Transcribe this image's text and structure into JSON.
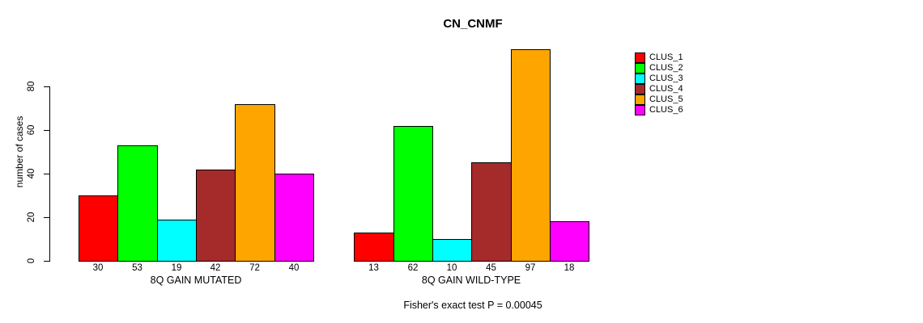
{
  "title": "CN_CNMF",
  "chart_data": {
    "type": "bar",
    "title": "CN_CNMF",
    "ylabel": "number of cases",
    "xlabel": "",
    "ylim": [
      0,
      100
    ],
    "yticks": [
      0,
      20,
      40,
      60,
      80
    ],
    "grid": false,
    "legend_position": "right",
    "categories": [
      "8Q GAIN MUTATED",
      "8Q GAIN WILD-TYPE"
    ],
    "series": [
      {
        "name": "CLUS_1",
        "color": "#FF0000",
        "values": [
          30,
          13
        ]
      },
      {
        "name": "CLUS_2",
        "color": "#00FF00",
        "values": [
          53,
          62
        ]
      },
      {
        "name": "CLUS_3",
        "color": "#00FFFF",
        "values": [
          19,
          10
        ]
      },
      {
        "name": "CLUS_4",
        "color": "#A52A2A",
        "values": [
          42,
          45
        ]
      },
      {
        "name": "CLUS_5",
        "color": "#FFA500",
        "values": [
          72,
          97
        ]
      },
      {
        "name": "CLUS_6",
        "color": "#FF00FF",
        "values": [
          40,
          18
        ]
      }
    ],
    "bar_value_labels_shown": true,
    "annotation": "Fisher's exact test P = 0.00045"
  }
}
